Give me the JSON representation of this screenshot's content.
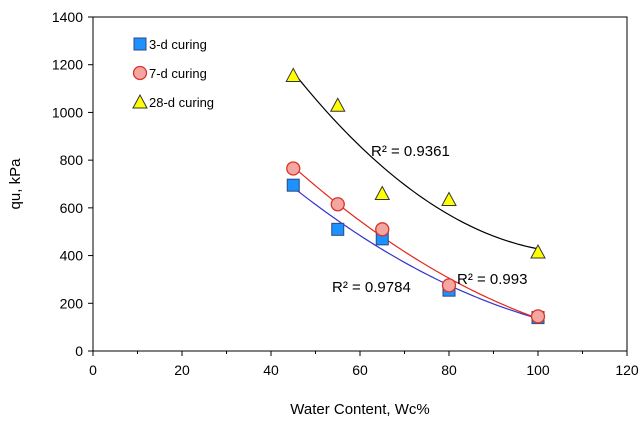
{
  "chart_data": {
    "type": "scatter",
    "xlabel": "Water Content, Wc%",
    "ylabel": "qu, kPa",
    "xlim": [
      0,
      120
    ],
    "ylim": [
      0,
      1400
    ],
    "x_ticks": [
      0,
      20,
      40,
      60,
      80,
      100,
      120
    ],
    "y_ticks": [
      0,
      200,
      400,
      600,
      800,
      1000,
      1200,
      1400
    ],
    "grid": false,
    "legend_position": "top-left",
    "series": [
      {
        "name": "3-d curing",
        "marker": "square",
        "color": "#1e90ff",
        "trend_color": "#3333cc",
        "x": [
          45,
          55,
          65,
          80,
          100
        ],
        "y": [
          695,
          510,
          470,
          255,
          140
        ],
        "r2_label": "R² = 0.9784"
      },
      {
        "name": "7-d curing",
        "marker": "circle",
        "color": "#f4a6a0",
        "trend_color": "#e8261b",
        "x": [
          45,
          55,
          65,
          80,
          100
        ],
        "y": [
          765,
          615,
          510,
          275,
          145
        ],
        "r2_label": "R² = 0.993"
      },
      {
        "name": "28-d curing",
        "marker": "triangle",
        "color": "#ffff00",
        "trend_color": "#000000",
        "x": [
          45,
          55,
          65,
          80,
          100
        ],
        "y": [
          1155,
          1030,
          660,
          635,
          415
        ],
        "r2_label": "R² = 0.9361"
      }
    ]
  }
}
